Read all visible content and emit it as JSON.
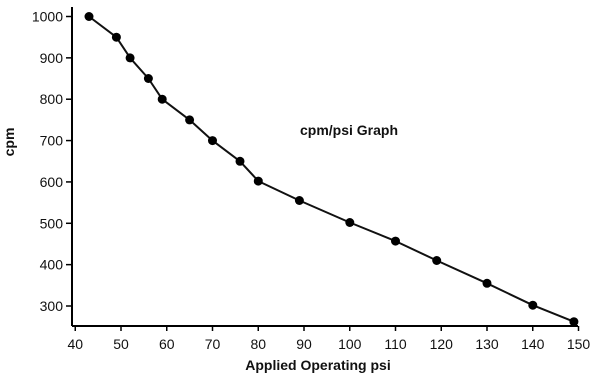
{
  "chart_data": {
    "type": "line",
    "title": "",
    "annotation": "cpm/psi Graph",
    "xlabel": "Applied Operating psi",
    "ylabel": "cpm",
    "xlim": [
      30,
      150
    ],
    "ylim": [
      250,
      1000
    ],
    "x_ticks": [
      40,
      50,
      60,
      70,
      80,
      90,
      100,
      110,
      120,
      130,
      140,
      150
    ],
    "y_ticks": [
      300,
      400,
      500,
      600,
      700,
      800,
      900,
      1000
    ],
    "grid": false,
    "legend": "none",
    "series": [
      {
        "x": [
          43,
          49,
          52,
          56,
          59,
          65,
          70,
          76,
          80,
          89,
          100,
          110,
          119,
          130,
          140,
          149
        ],
        "y": [
          1000,
          950,
          900,
          850,
          800,
          750,
          700,
          650,
          602,
          555,
          502,
          457,
          410,
          355,
          302,
          262
        ]
      }
    ],
    "colors": {
      "line": "#111111",
      "marker": "#000000",
      "axis": "#000000"
    }
  }
}
